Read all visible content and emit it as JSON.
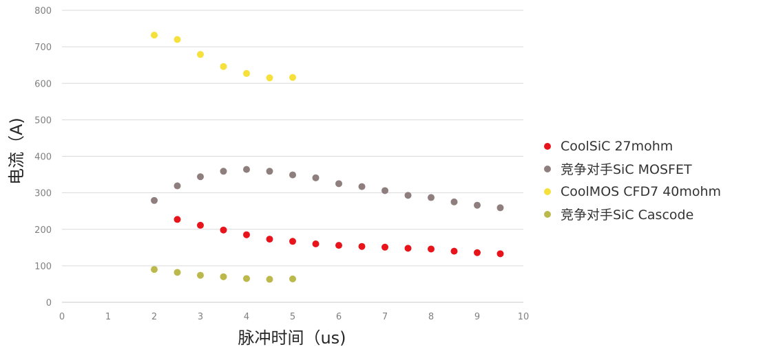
{
  "chart_data": {
    "type": "scatter",
    "title": "",
    "xlabel": "脉冲时间（us)",
    "ylabel": "电流（A)",
    "xlim": [
      0,
      10
    ],
    "ylim": [
      0,
      800
    ],
    "xticks": [
      0,
      1,
      2,
      3,
      4,
      5,
      6,
      7,
      8,
      9,
      10
    ],
    "yticks": [
      0,
      100,
      200,
      300,
      400,
      500,
      600,
      700,
      800
    ],
    "grid": "horizontal",
    "legend_position": "right",
    "series": [
      {
        "name": "CoolSiC 27mohm",
        "color": "#e8141b",
        "x": [
          2.5,
          3,
          3.5,
          4,
          4.5,
          5,
          5.5,
          6,
          6.5,
          7,
          7.5,
          8,
          8.5,
          9,
          9.5
        ],
        "y": [
          227,
          211,
          198,
          185,
          173,
          167,
          160,
          156,
          153,
          151,
          148,
          146,
          140,
          136,
          133
        ]
      },
      {
        "name": "竞争对手SiC MOSFET",
        "color": "#8f7e7e",
        "x": [
          2,
          2.5,
          3,
          3.5,
          4,
          4.5,
          5,
          5.5,
          6,
          6.5,
          7,
          7.5,
          8,
          8.5,
          9,
          9.5
        ],
        "y": [
          279,
          319,
          344,
          359,
          364,
          359,
          349,
          341,
          325,
          317,
          306,
          293,
          287,
          275,
          266,
          259
        ]
      },
      {
        "name": "CoolMOS CFD7 40mohm",
        "color": "#f5e03c",
        "x": [
          2,
          2.5,
          3,
          3.5,
          4,
          4.5,
          5
        ],
        "y": [
          732,
          720,
          679,
          646,
          627,
          615,
          616
        ]
      },
      {
        "name": "竞争对手SiC Cascode",
        "color": "#bcb94c",
        "x": [
          2,
          2.5,
          3,
          3.5,
          4,
          4.5,
          5
        ],
        "y": [
          90,
          82,
          74,
          70,
          65,
          63,
          64
        ]
      }
    ]
  }
}
